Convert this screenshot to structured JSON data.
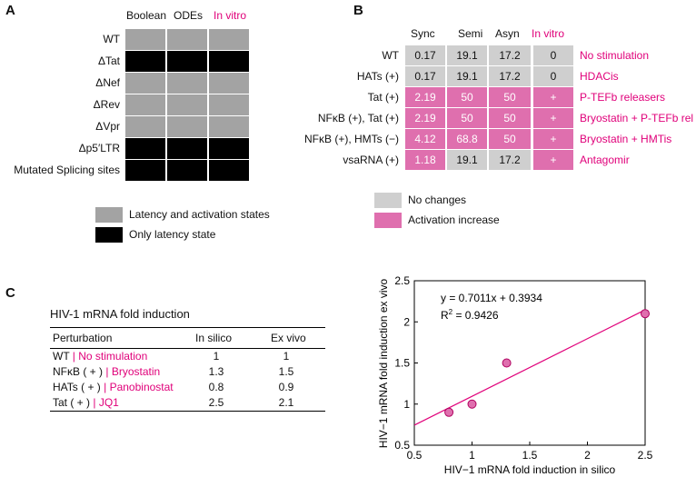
{
  "colors": {
    "gray": "#a3a3a3",
    "light_gray": "#cfcfcf",
    "black": "#000000",
    "magenta": "#e0007a",
    "pink": "#df6fae"
  },
  "panel_a": {
    "letter": "A",
    "columns": [
      "Boolean",
      "ODEs",
      "In vitro"
    ],
    "rows": [
      {
        "label": "WT",
        "cells": [
          "gray",
          "gray",
          "gray"
        ]
      },
      {
        "label": "ΔTat",
        "cells": [
          "black",
          "black",
          "black"
        ]
      },
      {
        "label": "ΔNef",
        "cells": [
          "gray",
          "gray",
          "gray"
        ]
      },
      {
        "label": "ΔRev",
        "cells": [
          "gray",
          "gray",
          "gray"
        ]
      },
      {
        "label": "ΔVpr",
        "cells": [
          "gray",
          "gray",
          "gray"
        ]
      },
      {
        "label": "Δp5′LTR",
        "cells": [
          "black",
          "black",
          "black"
        ]
      },
      {
        "label": "Mutated Splicing sites",
        "cells": [
          "black",
          "black",
          "black"
        ]
      }
    ],
    "legend": [
      {
        "color": "gray",
        "label": "Latency and activation states"
      },
      {
        "color": "black",
        "label": "Only latency state"
      }
    ]
  },
  "panel_b": {
    "letter": "B",
    "columns": [
      "Sync",
      "Semi",
      "Asyn",
      "In vitro"
    ],
    "rows": [
      {
        "label": "WT",
        "values": [
          "0.17",
          "19.1",
          "17.2",
          "0"
        ],
        "fills": [
          "light_gray",
          "light_gray",
          "light_gray",
          "light_gray"
        ],
        "treatment": "No stimulation"
      },
      {
        "label": "HATs (+)",
        "values": [
          "0.17",
          "19.1",
          "17.2",
          "0"
        ],
        "fills": [
          "light_gray",
          "light_gray",
          "light_gray",
          "light_gray"
        ],
        "treatment": "HDACis"
      },
      {
        "label": "Tat (+)",
        "values": [
          "2.19",
          "50",
          "50",
          "+"
        ],
        "fills": [
          "pink",
          "pink",
          "pink",
          "pink"
        ],
        "treatment": "P-TEFb releasers"
      },
      {
        "label": "NFκB (+), Tat (+)",
        "values": [
          "2.19",
          "50",
          "50",
          "+"
        ],
        "fills": [
          "pink",
          "pink",
          "pink",
          "pink"
        ],
        "treatment": "Bryostatin + P-TEFb rel"
      },
      {
        "label": "NFκB (+), HMTs (−)",
        "values": [
          "4.12",
          "68.8",
          "50",
          "+"
        ],
        "fills": [
          "pink",
          "pink",
          "pink",
          "pink"
        ],
        "treatment": "Bryostatin + HMTis"
      },
      {
        "label": "vsaRNA (+)",
        "values": [
          "1.18",
          "19.1",
          "17.2",
          "+"
        ],
        "fills": [
          "pink",
          "light_gray",
          "light_gray",
          "pink"
        ],
        "treatment": "Antagomir"
      }
    ],
    "legend": [
      {
        "color": "light_gray",
        "label": "No changes"
      },
      {
        "color": "pink",
        "label": "Activation increase"
      }
    ]
  },
  "panel_c": {
    "letter": "C",
    "table_title": "HIV-1 mRNA fold induction",
    "headers": [
      "Perturbation",
      "In silico",
      "Ex vivo"
    ],
    "rows": [
      {
        "perturbation": "WT",
        "treatment": "No stimulation",
        "in_silico": "1",
        "ex_vivo": "1"
      },
      {
        "perturbation": "NFκB ( + )",
        "treatment": "Bryostatin",
        "in_silico": "1.3",
        "ex_vivo": "1.5"
      },
      {
        "perturbation": "HATs ( + )",
        "treatment": "Panobinostat",
        "in_silico": "0.8",
        "ex_vivo": "0.9"
      },
      {
        "perturbation": "Tat ( + )",
        "treatment": "JQ1",
        "in_silico": "2.5",
        "ex_vivo": "2.1"
      }
    ]
  },
  "chart_data": {
    "type": "scatter",
    "xlabel": "HIV−1 mRNA fold induction in silico",
    "ylabel": "HIV−1 mRNA fold induction ex vivo",
    "xlim": [
      0.5,
      2.5
    ],
    "ylim": [
      0.5,
      2.5
    ],
    "xticks": [
      0.5,
      1,
      1.5,
      2,
      2.5
    ],
    "yticks": [
      0.5,
      1,
      1.5,
      2,
      2.5
    ],
    "xtick_labels": [
      "0.5",
      "1",
      "1.5",
      "2",
      "2.5"
    ],
    "ytick_labels": [
      "0.5",
      "1",
      "1.5",
      "2",
      "2.5"
    ],
    "points": [
      {
        "x": 0.8,
        "y": 0.9
      },
      {
        "x": 1.0,
        "y": 1.0
      },
      {
        "x": 1.3,
        "y": 1.5
      },
      {
        "x": 2.5,
        "y": 2.1
      }
    ],
    "fit": {
      "slope": 0.7011,
      "intercept": 0.3934
    },
    "equation": "y = 0.7011x + 0.3934",
    "r2_label": "R",
    "r2_value": " = 0.9426",
    "grid": false
  }
}
